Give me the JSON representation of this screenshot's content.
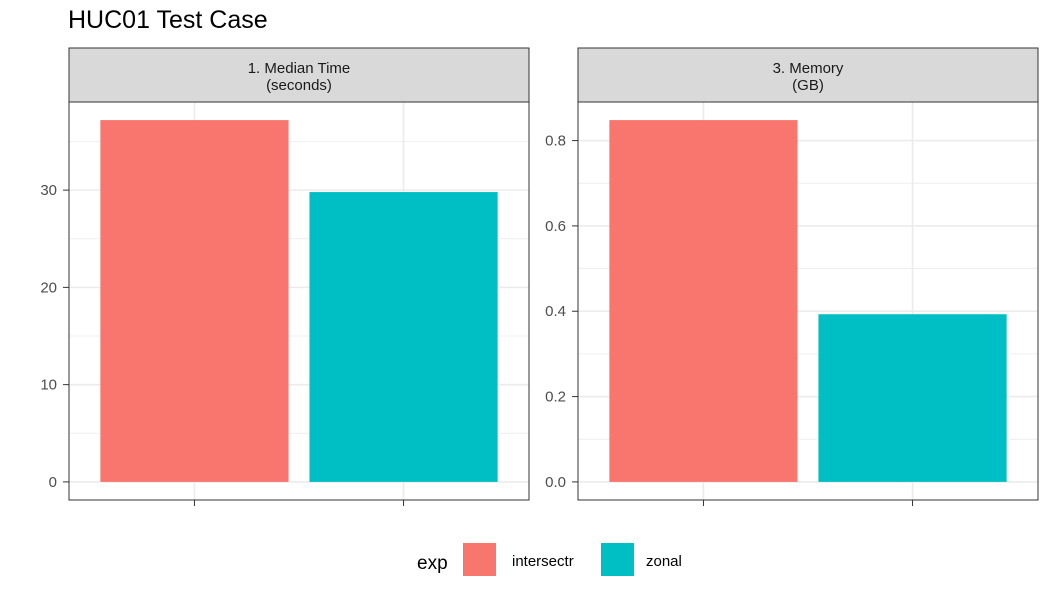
{
  "title": "HUC01 Test Case",
  "colors": {
    "intersectr": "#F8766D",
    "zonal": "#00BFC4",
    "strip_bg": "#D9D9D9",
    "grid": "#EBEBEB"
  },
  "chart_data": {
    "type": "bar",
    "title": "HUC01 Test Case",
    "legend": {
      "title": "exp",
      "position": "bottom",
      "entries": [
        "intersectr",
        "zonal"
      ]
    },
    "panels": [
      {
        "strip": [
          "1. Median Time",
          "(seconds)"
        ],
        "categories": [
          "intersectr",
          "zonal"
        ],
        "values": [
          37.2,
          29.8
        ],
        "ylim": [
          -1.86,
          39.06
        ],
        "yticks": [
          0,
          10,
          20,
          30
        ],
        "ytick_labels": [
          "0",
          "10",
          "20",
          "30"
        ],
        "grid": true
      },
      {
        "strip": [
          "3. Memory",
          "(GB)"
        ],
        "categories": [
          "intersectr",
          "zonal"
        ],
        "values": [
          0.848,
          0.393
        ],
        "ylim": [
          -0.0424,
          0.8904
        ],
        "yticks": [
          0.0,
          0.2,
          0.4,
          0.6,
          0.8
        ],
        "ytick_labels": [
          "0.0",
          "0.2",
          "0.4",
          "0.6",
          "0.8"
        ],
        "grid": true
      }
    ]
  }
}
